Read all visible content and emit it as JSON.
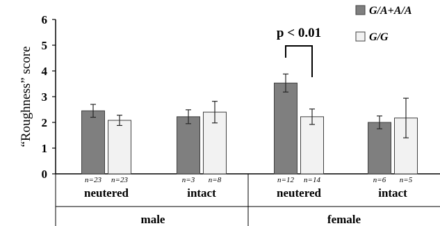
{
  "chart_data": {
    "type": "bar",
    "ylabel": "“Roughness” score",
    "ylim": [
      0,
      6
    ],
    "yticks": [
      "0",
      "1",
      "2",
      "3",
      "4",
      "5",
      "6"
    ],
    "groups": [
      {
        "sex": "male",
        "status": "neutered",
        "n": [
          "n=23",
          "n=23"
        ]
      },
      {
        "sex": "male",
        "status": "intact",
        "n": [
          "n=3",
          "n=8"
        ]
      },
      {
        "sex": "female",
        "status": "neutered",
        "n": [
          "n=12",
          "n=14"
        ]
      },
      {
        "sex": "female",
        "status": "intact",
        "n": [
          "n=6",
          "n=5"
        ]
      }
    ],
    "sexes": [
      "male",
      "female"
    ],
    "series": [
      {
        "name": "G/A+A/A",
        "color": "#7f7f7f",
        "values": [
          2.45,
          2.22,
          3.53,
          2.0
        ],
        "errors": [
          0.25,
          0.27,
          0.35,
          0.25
        ]
      },
      {
        "name": "G/G",
        "color": "#f2f2f2",
        "values": [
          2.08,
          2.4,
          2.22,
          2.17
        ],
        "errors": [
          0.2,
          0.42,
          0.3,
          0.77
        ]
      }
    ],
    "annotation": {
      "text": "p < 0.01",
      "group": 2
    },
    "legend_position": "top-right",
    "grid": false
  }
}
